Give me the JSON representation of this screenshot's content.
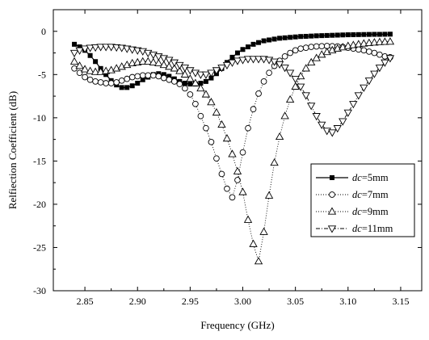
{
  "chart_data": {
    "type": "line",
    "title": "",
    "xlabel": "Frequency (GHz)",
    "ylabel": "Relfiection Coefficient (dB)",
    "xlim": [
      2.82,
      3.17
    ],
    "ylim": [
      -30,
      2.5
    ],
    "xticks": [
      2.85,
      2.9,
      2.95,
      3.0,
      3.05,
      3.1,
      3.15
    ],
    "xtick_labels": [
      "2.85",
      "2.90",
      "2.95",
      "3.00",
      "3.05",
      "3.10",
      "3.15"
    ],
    "yticks": [
      0,
      -5,
      -10,
      -15,
      -20,
      -25,
      -30
    ],
    "ytick_labels": [
      "0",
      "-5",
      "-10",
      "-15",
      "-20",
      "-25",
      "-30"
    ],
    "grid": false,
    "legend_position": "right",
    "series": [
      {
        "name": "dc=5mm",
        "label_var": "dc",
        "label_val": "=5mm",
        "line_style": "solid",
        "marker": "square-filled",
        "x": [
          2.84,
          2.845,
          2.85,
          2.855,
          2.86,
          2.865,
          2.87,
          2.875,
          2.88,
          2.885,
          2.89,
          2.895,
          2.9,
          2.905,
          2.91,
          2.915,
          2.92,
          2.925,
          2.93,
          2.935,
          2.94,
          2.945,
          2.95,
          2.955,
          2.96,
          2.965,
          2.97,
          2.975,
          2.98,
          2.985,
          2.99,
          2.995,
          3.0,
          3.005,
          3.01,
          3.015,
          3.02,
          3.025,
          3.03,
          3.035,
          3.04,
          3.045,
          3.05,
          3.055,
          3.06,
          3.065,
          3.07,
          3.075,
          3.08,
          3.085,
          3.09,
          3.095,
          3.1,
          3.105,
          3.11,
          3.115,
          3.12,
          3.125,
          3.13,
          3.135,
          3.14
        ],
        "y": [
          -1.5,
          -1.8,
          -2.2,
          -2.8,
          -3.5,
          -4.3,
          -5.0,
          -5.7,
          -6.2,
          -6.5,
          -6.5,
          -6.3,
          -6.0,
          -5.6,
          -5.3,
          -5.0,
          -4.9,
          -5.0,
          -5.2,
          -5.5,
          -5.8,
          -6.0,
          -6.1,
          -6.1,
          -6.0,
          -5.8,
          -5.4,
          -4.9,
          -4.3,
          -3.6,
          -3.0,
          -2.5,
          -2.1,
          -1.8,
          -1.5,
          -1.3,
          -1.1,
          -1.0,
          -0.9,
          -0.8,
          -0.75,
          -0.7,
          -0.65,
          -0.6,
          -0.58,
          -0.55,
          -0.52,
          -0.5,
          -0.48,
          -0.46,
          -0.44,
          -0.42,
          -0.4,
          -0.39,
          -0.38,
          -0.37,
          -0.36,
          -0.35,
          -0.35,
          -0.34,
          -0.33
        ]
      },
      {
        "name": "dc=7mm",
        "label_var": "dc",
        "label_val": "=7mm",
        "line_style": "dotted",
        "marker": "circle-open",
        "x": [
          2.84,
          2.845,
          2.85,
          2.855,
          2.86,
          2.865,
          2.87,
          2.875,
          2.88,
          2.885,
          2.89,
          2.895,
          2.9,
          2.905,
          2.91,
          2.915,
          2.92,
          2.925,
          2.93,
          2.935,
          2.94,
          2.945,
          2.95,
          2.955,
          2.96,
          2.965,
          2.97,
          2.975,
          2.98,
          2.985,
          2.99,
          2.995,
          3.0,
          3.005,
          3.01,
          3.015,
          3.02,
          3.025,
          3.03,
          3.035,
          3.04,
          3.045,
          3.05,
          3.055,
          3.06,
          3.065,
          3.07,
          3.075,
          3.08,
          3.085,
          3.09,
          3.095,
          3.1,
          3.105,
          3.11,
          3.115,
          3.12,
          3.125,
          3.13,
          3.135,
          3.14
        ],
        "y": [
          -4.3,
          -4.8,
          -5.3,
          -5.6,
          -5.8,
          -5.9,
          -6.0,
          -6.0,
          -5.9,
          -5.7,
          -5.5,
          -5.3,
          -5.2,
          -5.1,
          -5.1,
          -5.1,
          -5.2,
          -5.4,
          -5.6,
          -5.8,
          -6.1,
          -6.6,
          -7.3,
          -8.4,
          -9.8,
          -11.2,
          -12.8,
          -14.7,
          -16.5,
          -18.2,
          -19.2,
          -17.2,
          -14.0,
          -11.2,
          -9.0,
          -7.2,
          -5.8,
          -4.8,
          -4.0,
          -3.4,
          -2.9,
          -2.5,
          -2.2,
          -2.0,
          -1.9,
          -1.8,
          -1.75,
          -1.72,
          -1.7,
          -1.72,
          -1.75,
          -1.8,
          -1.9,
          -2.0,
          -2.1,
          -2.2,
          -2.35,
          -2.5,
          -2.7,
          -2.9,
          -3.0
        ]
      },
      {
        "name": "dc=9mm",
        "label_var": "dc",
        "label_val": "=9mm",
        "line_style": "dotted",
        "marker": "triangle-up-open",
        "x": [
          2.84,
          2.845,
          2.85,
          2.855,
          2.86,
          2.865,
          2.87,
          2.875,
          2.88,
          2.885,
          2.89,
          2.895,
          2.9,
          2.905,
          2.91,
          2.915,
          2.92,
          2.925,
          2.93,
          2.935,
          2.94,
          2.945,
          2.95,
          2.955,
          2.96,
          2.965,
          2.97,
          2.975,
          2.98,
          2.985,
          2.99,
          2.995,
          3.0,
          3.005,
          3.01,
          3.015,
          3.02,
          3.025,
          3.03,
          3.035,
          3.04,
          3.045,
          3.05,
          3.055,
          3.06,
          3.065,
          3.07,
          3.075,
          3.08,
          3.085,
          3.09,
          3.095,
          3.1,
          3.105,
          3.11,
          3.115,
          3.12,
          3.125,
          3.13,
          3.135,
          3.14
        ],
        "y": [
          -3.5,
          -4.0,
          -4.4,
          -4.6,
          -4.7,
          -4.7,
          -4.6,
          -4.5,
          -4.3,
          -4.1,
          -3.9,
          -3.7,
          -3.6,
          -3.5,
          -3.5,
          -3.6,
          -3.7,
          -3.9,
          -4.1,
          -4.3,
          -4.6,
          -5.0,
          -5.5,
          -6.0,
          -6.6,
          -7.3,
          -8.2,
          -9.4,
          -10.8,
          -12.4,
          -14.2,
          -16.2,
          -18.6,
          -21.8,
          -24.6,
          -26.6,
          -23.2,
          -19.0,
          -15.2,
          -12.2,
          -9.8,
          -7.9,
          -6.4,
          -5.2,
          -4.3,
          -3.6,
          -3.1,
          -2.7,
          -2.4,
          -2.2,
          -2.0,
          -1.85,
          -1.7,
          -1.6,
          -1.5,
          -1.42,
          -1.35,
          -1.3,
          -1.25,
          -1.22,
          -1.2
        ]
      },
      {
        "name": "dc=11mm",
        "label_var": "dc",
        "label_val": "=11mm",
        "line_style": "dashdot",
        "marker": "triangle-down-open",
        "x": [
          2.84,
          2.845,
          2.85,
          2.855,
          2.86,
          2.865,
          2.87,
          2.875,
          2.88,
          2.885,
          2.89,
          2.895,
          2.9,
          2.905,
          2.91,
          2.915,
          2.92,
          2.925,
          2.93,
          2.935,
          2.94,
          2.945,
          2.95,
          2.955,
          2.96,
          2.965,
          2.97,
          2.975,
          2.98,
          2.985,
          2.99,
          2.995,
          3.0,
          3.005,
          3.01,
          3.015,
          3.02,
          3.025,
          3.03,
          3.035,
          3.04,
          3.045,
          3.05,
          3.055,
          3.06,
          3.065,
          3.07,
          3.075,
          3.08,
          3.085,
          3.09,
          3.095,
          3.1,
          3.105,
          3.11,
          3.115,
          3.12,
          3.125,
          3.13,
          3.135,
          3.14
        ],
        "y": [
          -2.5,
          -2.2,
          -2.0,
          -1.9,
          -1.85,
          -1.8,
          -1.8,
          -1.8,
          -1.85,
          -1.9,
          -2.0,
          -2.1,
          -2.2,
          -2.3,
          -2.5,
          -2.7,
          -2.9,
          -3.1,
          -3.3,
          -3.6,
          -3.9,
          -4.2,
          -4.5,
          -4.8,
          -5.0,
          -5.0,
          -4.8,
          -4.5,
          -4.2,
          -3.9,
          -3.6,
          -3.4,
          -3.3,
          -3.2,
          -3.2,
          -3.2,
          -3.2,
          -3.3,
          -3.5,
          -3.8,
          -4.2,
          -4.8,
          -5.5,
          -6.4,
          -7.4,
          -8.6,
          -9.8,
          -10.8,
          -11.5,
          -11.7,
          -11.2,
          -10.4,
          -9.4,
          -8.4,
          -7.4,
          -6.5,
          -5.7,
          -4.9,
          -4.2,
          -3.6,
          -3.1
        ]
      }
    ]
  }
}
